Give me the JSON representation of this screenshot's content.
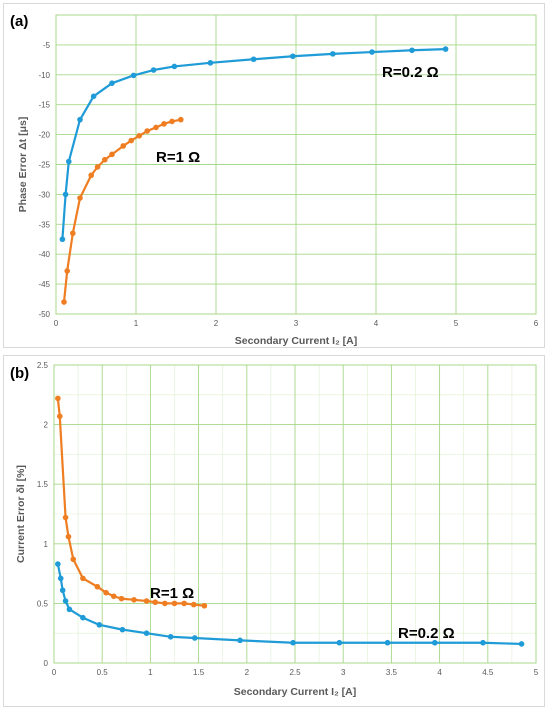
{
  "chart_data": [
    {
      "type": "line",
      "panel_label": "(a)",
      "xlabel": "Secondary Current I₂ [A]",
      "ylabel": "Phase Error Δt [μs]",
      "xlim": [
        0,
        6
      ],
      "ylim": [
        -50,
        0
      ],
      "x_ticks": [
        "0",
        "1",
        "2",
        "3",
        "4",
        "5",
        "6"
      ],
      "y_ticks": [
        "-5",
        "-10",
        "-15",
        "-20",
        "-25",
        "-30",
        "-35",
        "-40",
        "-45",
        "-50"
      ],
      "grid": true,
      "series": [
        {
          "name": "R=0.2 Ω",
          "color": "#1f9bd7",
          "x": [
            0.08,
            0.12,
            0.16,
            0.3,
            0.47,
            0.7,
            0.97,
            1.22,
            1.48,
            1.93,
            2.47,
            2.96,
            3.46,
            3.95,
            4.45,
            4.87
          ],
          "y": [
            -37.5,
            -30.0,
            -24.5,
            -17.5,
            -13.6,
            -11.4,
            -10.1,
            -9.2,
            -8.6,
            -8.0,
            -7.4,
            -6.9,
            -6.5,
            -6.2,
            -5.9,
            -5.7
          ]
        },
        {
          "name": "R=1 Ω",
          "color": "#ef7d22",
          "x": [
            0.1,
            0.14,
            0.21,
            0.3,
            0.44,
            0.52,
            0.61,
            0.7,
            0.84,
            0.94,
            1.04,
            1.14,
            1.25,
            1.35,
            1.45,
            1.56
          ],
          "y": [
            -48.0,
            -42.8,
            -36.5,
            -30.6,
            -26.8,
            -25.4,
            -24.2,
            -23.3,
            -21.9,
            -21.0,
            -20.2,
            -19.4,
            -18.8,
            -18.2,
            -17.8,
            -17.5
          ]
        }
      ],
      "annotations": [
        "R=0.2 Ω",
        "R=1 Ω"
      ]
    },
    {
      "type": "line",
      "panel_label": "(b)",
      "xlabel": "Secondary Current I₂ [A]",
      "ylabel": "Current Error δI [%]",
      "xlim": [
        0,
        5
      ],
      "ylim": [
        0,
        2.5
      ],
      "x_ticks": [
        "0",
        "0.5",
        "1",
        "1.5",
        "2",
        "2.5",
        "3",
        "3.5",
        "4",
        "4.5",
        "5"
      ],
      "y_ticks": [
        "0",
        "0.5",
        "1",
        "1.5",
        "2",
        "2.5"
      ],
      "grid": true,
      "series": [
        {
          "name": "R=1 Ω",
          "color": "#ef7d22",
          "x": [
            0.04,
            0.06,
            0.12,
            0.15,
            0.2,
            0.3,
            0.45,
            0.54,
            0.62,
            0.7,
            0.83,
            0.96,
            1.05,
            1.15,
            1.25,
            1.35,
            1.45,
            1.56
          ],
          "y": [
            2.22,
            2.07,
            1.22,
            1.06,
            0.87,
            0.71,
            0.64,
            0.59,
            0.56,
            0.54,
            0.53,
            0.52,
            0.51,
            0.5,
            0.5,
            0.5,
            0.49,
            0.48
          ]
        },
        {
          "name": "R=0.2 Ω",
          "color": "#1f9bd7",
          "x": [
            0.04,
            0.07,
            0.09,
            0.12,
            0.16,
            0.3,
            0.47,
            0.71,
            0.96,
            1.21,
            1.46,
            1.93,
            2.48,
            2.96,
            3.46,
            3.95,
            4.45,
            4.85
          ],
          "y": [
            0.83,
            0.71,
            0.61,
            0.52,
            0.45,
            0.38,
            0.32,
            0.28,
            0.25,
            0.22,
            0.21,
            0.19,
            0.17,
            0.17,
            0.17,
            0.17,
            0.17,
            0.16
          ]
        }
      ],
      "annotations": [
        "R=1 Ω",
        "R=0.2 Ω"
      ]
    }
  ]
}
